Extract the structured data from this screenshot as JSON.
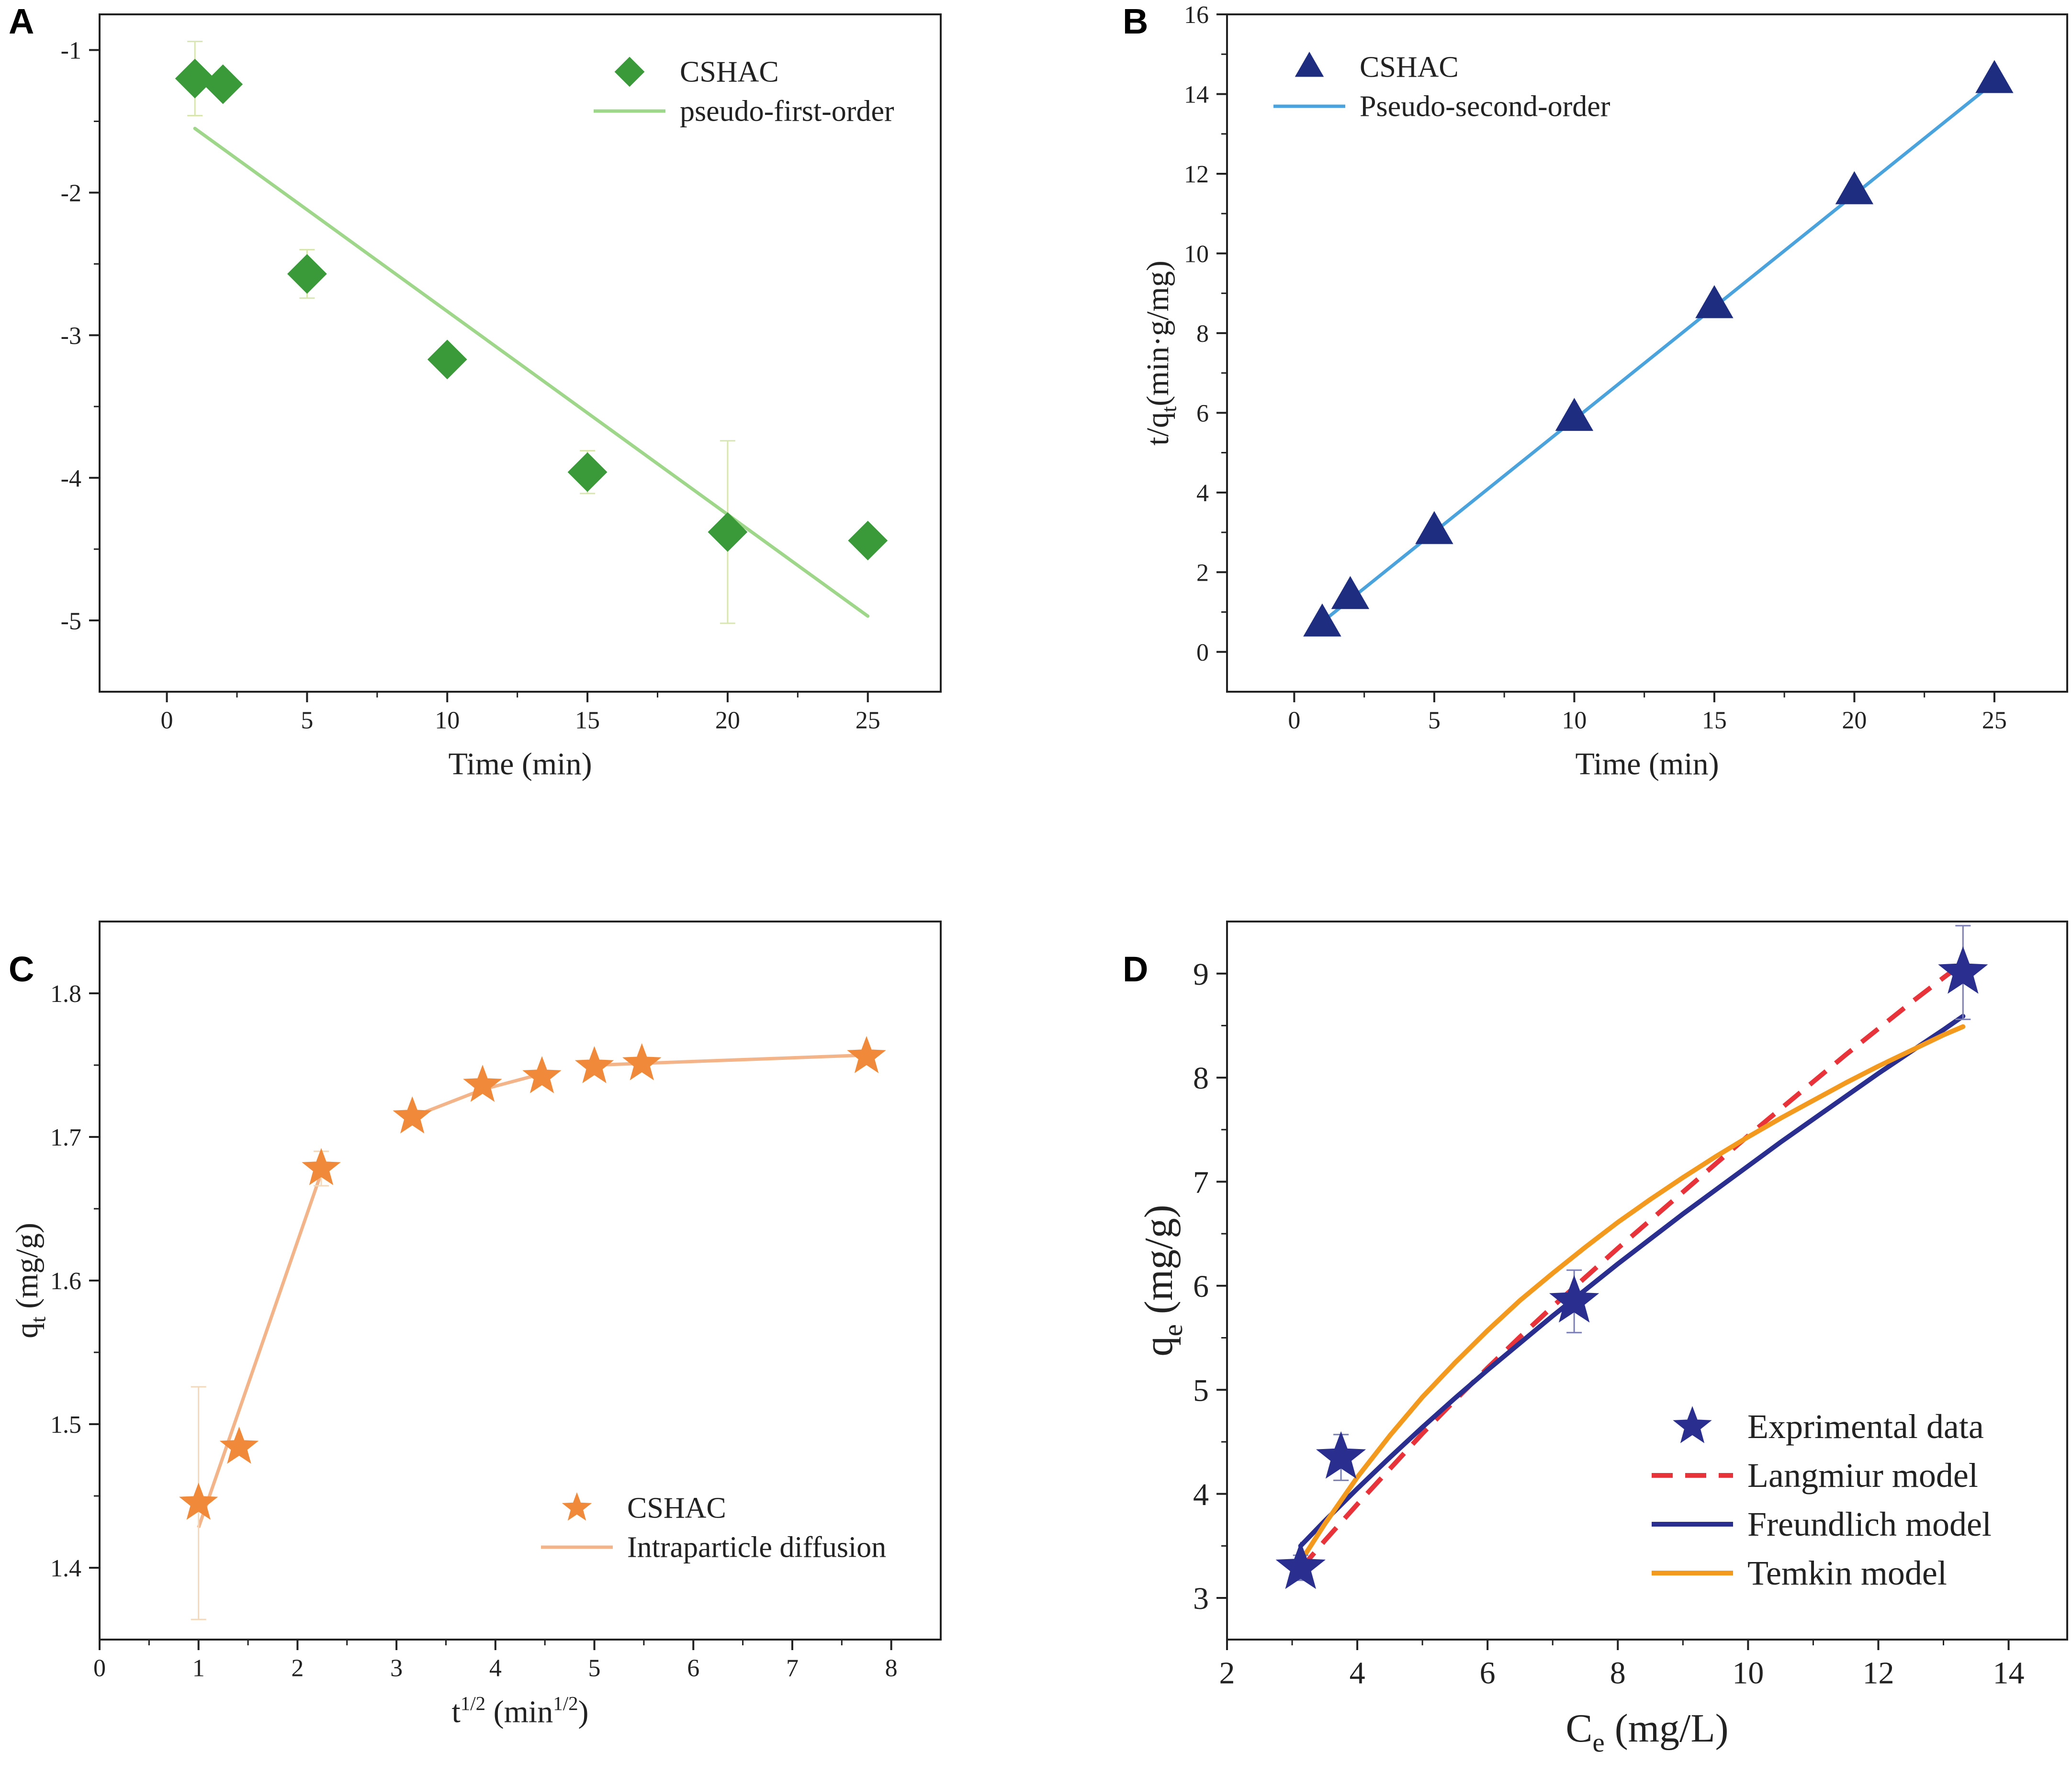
{
  "figure_title": "",
  "chart_data": [
    {
      "panel": "A",
      "type": "scatter",
      "title": "",
      "xlabel": "Time (min)",
      "ylabel": "",
      "xlim": [
        -2.4,
        27.6
      ],
      "ylim": [
        -5.5,
        -0.75
      ],
      "xticks": [
        0,
        5,
        10,
        15,
        20,
        25
      ],
      "yticks": [
        -1,
        -2,
        -3,
        -4,
        -5
      ],
      "legend_position": "top-right",
      "series": [
        {
          "name": "CSHAC",
          "kind": "points",
          "marker": "diamond",
          "color": "#3a9a3a",
          "errorbar_color": "#d8e6b0",
          "x": [
            1,
            2,
            5,
            10,
            15,
            20,
            25
          ],
          "y": [
            -1.2,
            -1.24,
            -2.57,
            -3.17,
            -3.96,
            -4.38,
            -4.44
          ],
          "err": [
            0.26,
            0.0,
            0.17,
            0.0,
            0.15,
            0.64,
            0.0
          ]
        },
        {
          "name": "pseudo-first-order",
          "kind": "line",
          "color": "#9ed68a",
          "x": [
            1,
            25
          ],
          "y": [
            -1.55,
            -4.97
          ]
        }
      ]
    },
    {
      "panel": "B",
      "type": "scatter",
      "title": "",
      "xlabel": "Time (min)",
      "ylabel": "t/q",
      "ylabel_sub": "t",
      "ylabel_tail": "(min·g/mg)",
      "xlim": [
        -2.4,
        27.6
      ],
      "ylim": [
        -1,
        16
      ],
      "xticks": [
        0,
        5,
        10,
        15,
        20,
        25
      ],
      "yticks": [
        0,
        2,
        4,
        6,
        8,
        10,
        12,
        14,
        16
      ],
      "legend_position": "top-left",
      "series": [
        {
          "name": "CSHAC",
          "kind": "points",
          "marker": "triangle",
          "color": "#1f2d80",
          "x": [
            1,
            2,
            5,
            10,
            15,
            20,
            25
          ],
          "y": [
            0.71,
            1.4,
            3.03,
            5.87,
            8.7,
            11.56,
            14.35
          ]
        },
        {
          "name": "Pseudo-second-order",
          "kind": "line",
          "color": "#4aa3dc",
          "x": [
            1,
            25
          ],
          "y": [
            0.75,
            14.3
          ]
        }
      ]
    },
    {
      "panel": "C",
      "type": "scatter",
      "title": "",
      "xlabel": "t",
      "xlabel_sup": "1/2",
      "xlabel_tail": " (min",
      "xlabel_sup2": "1/2",
      "xlabel_end": ")",
      "ylabel": "q",
      "ylabel_sub": "t",
      "ylabel_tail": " (mg/g)",
      "xlim": [
        0,
        8.5
      ],
      "ylim": [
        1.35,
        1.85
      ],
      "xticks": [
        0,
        1,
        2,
        3,
        4,
        5,
        6,
        7,
        8
      ],
      "yticks": [
        1.4,
        1.5,
        1.6,
        1.7,
        1.8
      ],
      "legend_position": "bottom-right",
      "series": [
        {
          "name": "CSHAC",
          "kind": "points",
          "marker": "star",
          "color": "#f08a3a",
          "errorbar_color": "#f3d9b8",
          "x": [
            1.0,
            1.41,
            2.24,
            3.16,
            3.87,
            4.47,
            5.0,
            5.48,
            7.75
          ],
          "y": [
            1.445,
            1.484,
            1.678,
            1.714,
            1.736,
            1.742,
            1.749,
            1.751,
            1.756
          ],
          "err": [
            0.081,
            0.0,
            0.012,
            0.0,
            0.0,
            0.0,
            0.0,
            0.0,
            0.0
          ]
        },
        {
          "name": "Intraparticle diffusion",
          "kind": "segments",
          "color": "#f4b48a",
          "segments": [
            {
              "x": [
                1.0,
                2.24
              ],
              "y": [
                1.428,
                1.675
              ]
            },
            {
              "x": [
                3.16,
                3.87,
                4.47
              ],
              "y": [
                1.714,
                1.733,
                1.744
              ]
            },
            {
              "x": [
                5.0,
                7.75
              ],
              "y": [
                1.75,
                1.757
              ]
            }
          ]
        }
      ]
    },
    {
      "panel": "D",
      "type": "line",
      "title": "",
      "xlabel": "C",
      "xlabel_sub": "e",
      "xlabel_tail": " (mg/L)",
      "ylabel": "q",
      "ylabel_sub": "e",
      "ylabel_tail": " (mg/g)",
      "xlim": [
        2,
        14.9
      ],
      "ylim": [
        2.6,
        9.5
      ],
      "xticks": [
        2,
        4,
        6,
        8,
        10,
        12,
        14
      ],
      "yticks": [
        3,
        4,
        5,
        6,
        7,
        8,
        9
      ],
      "legend_position": "bottom-right",
      "series": [
        {
          "name": "Exprimental data",
          "kind": "points",
          "marker": "star",
          "color": "#2a2f8f",
          "label_color": "#2a2f8f",
          "x": [
            3.13,
            3.75,
            7.33,
            13.3
          ],
          "y": [
            3.29,
            4.35,
            5.85,
            9.01
          ],
          "err": [
            0.12,
            0.22,
            0.3,
            0.45
          ]
        },
        {
          "name": "Langmiur model",
          "kind": "line",
          "dashed": true,
          "color": "#e8333a",
          "label_color": "#e8333a",
          "x": [
            3.13,
            3.5,
            4,
            4.5,
            5,
            5.5,
            6,
            6.5,
            7,
            7.5,
            8,
            8.5,
            9,
            9.5,
            10,
            10.5,
            11,
            11.5,
            12,
            12.5,
            13,
            13.3
          ],
          "y": [
            3.28,
            3.55,
            3.9,
            4.24,
            4.58,
            4.9,
            5.21,
            5.51,
            5.8,
            6.08,
            6.36,
            6.63,
            6.9,
            7.17,
            7.44,
            7.7,
            7.96,
            8.22,
            8.47,
            8.72,
            8.96,
            9.1
          ]
        },
        {
          "name": "Freundlich model",
          "kind": "line",
          "color": "#2a2f8f",
          "label_color": "#2a2f8f",
          "x": [
            3.13,
            3.5,
            4,
            4.5,
            5,
            5.5,
            6,
            6.5,
            7,
            7.5,
            8,
            8.5,
            9,
            9.5,
            10,
            10.5,
            11,
            11.5,
            12,
            12.5,
            13,
            13.3
          ],
          "y": [
            3.5,
            3.74,
            4.05,
            4.35,
            4.64,
            4.92,
            5.19,
            5.45,
            5.71,
            5.96,
            6.21,
            6.45,
            6.69,
            6.92,
            7.15,
            7.38,
            7.6,
            7.82,
            8.04,
            8.25,
            8.46,
            8.59
          ]
        },
        {
          "name": "Temkin model",
          "kind": "line",
          "color": "#f39a1e",
          "label_color": "#f39a1e",
          "x": [
            3.13,
            3.5,
            4,
            4.5,
            5,
            5.5,
            6,
            6.5,
            7,
            7.5,
            8,
            8.5,
            9,
            9.5,
            10,
            10.5,
            11,
            11.5,
            12,
            12.5,
            13,
            13.3
          ],
          "y": [
            3.35,
            3.71,
            4.16,
            4.56,
            4.93,
            5.26,
            5.57,
            5.86,
            6.12,
            6.37,
            6.61,
            6.83,
            7.04,
            7.24,
            7.43,
            7.61,
            7.78,
            7.95,
            8.11,
            8.26,
            8.41,
            8.49
          ]
        }
      ]
    }
  ]
}
